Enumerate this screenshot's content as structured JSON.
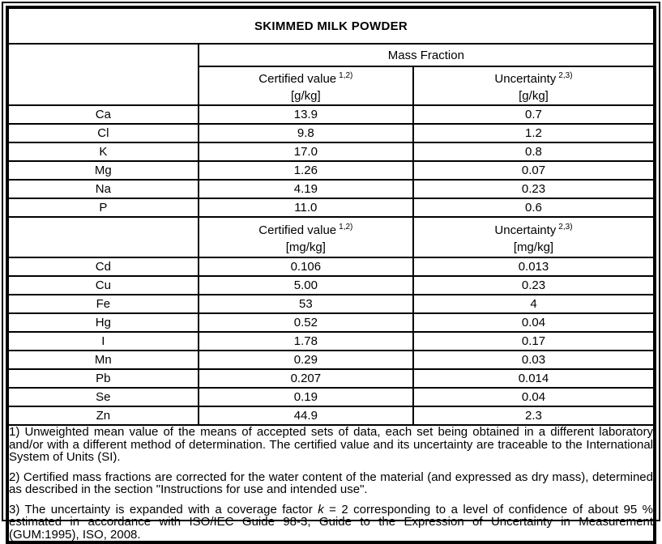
{
  "title": "SKIMMED MILK POWDER",
  "table": {
    "mass_fraction_label": "Mass Fraction",
    "columns": {
      "certified_label": "Certified value",
      "certified_sup": "1,2)",
      "uncertainty_label": "Uncertainty",
      "uncertainty_sup": "2,3)"
    },
    "sections": [
      {
        "unit": "[g/kg]",
        "rows": [
          {
            "element": "Ca",
            "certified": "13.9",
            "uncertainty": "0.7"
          },
          {
            "element": "Cl",
            "certified": "9.8",
            "uncertainty": "1.2"
          },
          {
            "element": "K",
            "certified": "17.0",
            "uncertainty": "0.8"
          },
          {
            "element": "Mg",
            "certified": "1.26",
            "uncertainty": "0.07"
          },
          {
            "element": "Na",
            "certified": "4.19",
            "uncertainty": "0.23"
          },
          {
            "element": "P",
            "certified": "11.0",
            "uncertainty": "0.6"
          }
        ]
      },
      {
        "unit": "[mg/kg]",
        "rows": [
          {
            "element": "Cd",
            "certified": "0.106",
            "uncertainty": "0.013"
          },
          {
            "element": "Cu",
            "certified": "5.00",
            "uncertainty": "0.23"
          },
          {
            "element": "Fe",
            "certified": "53",
            "uncertainty": "4"
          },
          {
            "element": "Hg",
            "certified": "0.52",
            "uncertainty": "0.04"
          },
          {
            "element": "I",
            "certified": "1.78",
            "uncertainty": "0.17"
          },
          {
            "element": "Mn",
            "certified": "0.29",
            "uncertainty": "0.03"
          },
          {
            "element": "Pb",
            "certified": "0.207",
            "uncertainty": "0.014"
          },
          {
            "element": "Se",
            "certified": "0.19",
            "uncertainty": "0.04"
          },
          {
            "element": "Zn",
            "certified": "44.9",
            "uncertainty": "2.3"
          }
        ]
      }
    ]
  },
  "footnotes": [
    {
      "segments": [
        {
          "text": "1) Unweighted mean value of the means of accepted sets of data, each set being obtained in a different laboratory and/or with a different method of determination. The certified value and its uncertainty are traceable to the International System of Units (SI).",
          "italic": false
        }
      ]
    },
    {
      "segments": [
        {
          "text": "2) Certified mass fractions are corrected for the water content of the material (and expressed as dry mass), determined as described in the section \"Instructions for use and intended use\".",
          "italic": false
        }
      ]
    },
    {
      "segments": [
        {
          "text": "3) The uncertainty is expanded with a coverage factor ",
          "italic": false
        },
        {
          "text": "k",
          "italic": true
        },
        {
          "text": " = 2 corresponding to a level of confidence of about 95 % estimated in accordance with ISO/IEC Guide 98-3, Guide to the Expression of Uncertainty in Measurement (GUM:1995), ISO, 2008.",
          "italic": false
        }
      ]
    }
  ],
  "colors": {
    "border": "#000000",
    "background": "#ffffff",
    "text": "#000000"
  }
}
